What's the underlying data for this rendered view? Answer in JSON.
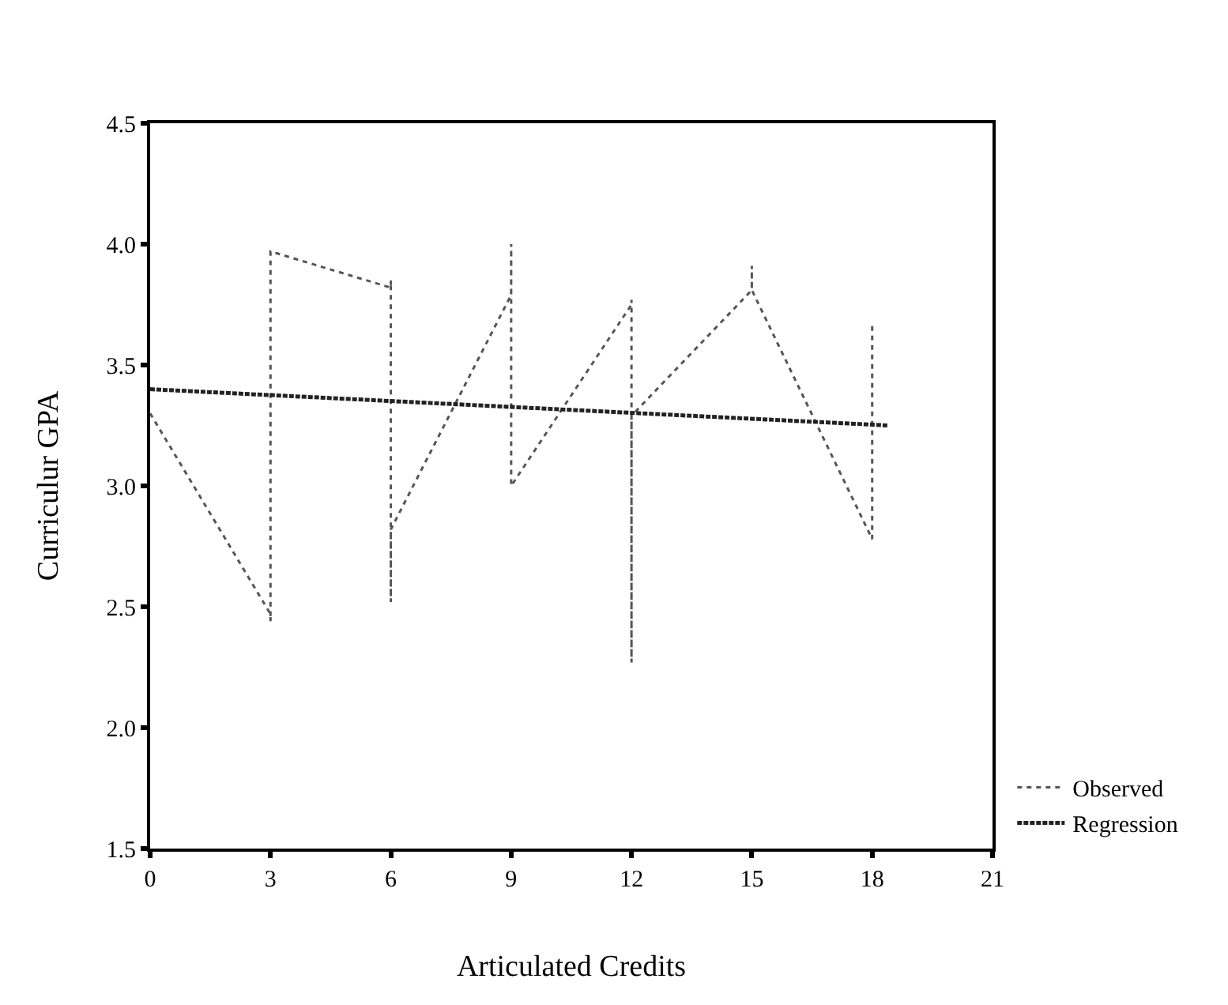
{
  "chart_data": {
    "type": "line",
    "xlabel": "Articulated Credits",
    "ylabel": "Curriculur GPA",
    "xlim": [
      0,
      21
    ],
    "xticks": [
      0,
      3,
      6,
      9,
      12,
      15,
      18,
      21
    ],
    "ylim": [
      1.5,
      4.5
    ],
    "yticks": [
      {
        "value": 1.5,
        "label": "1.5"
      },
      {
        "value": 2,
        "label": "2.0"
      },
      {
        "value": 2.5,
        "label": "2.5"
      },
      {
        "value": 3,
        "label": "3.0"
      },
      {
        "value": 3.5,
        "label": "3.5"
      },
      {
        "value": 4,
        "label": "4.0"
      },
      {
        "value": 4.5,
        "label": "4.5"
      }
    ],
    "grid": false,
    "legend": "bottom right",
    "series": [
      {
        "name": "Observed",
        "color": "#555555",
        "line_style": "dotted",
        "x": [
          0,
          3,
          3,
          3,
          6,
          6,
          6,
          6,
          9,
          9,
          9,
          12,
          12,
          12,
          12,
          15,
          15,
          15,
          18,
          18
        ],
        "values": [
          3.3,
          2.47,
          2.44,
          3.97,
          3.82,
          3.85,
          2.52,
          2.82,
          3.79,
          4.0,
          3.0,
          3.75,
          3.77,
          2.27,
          3.29,
          3.81,
          3.91,
          3.81,
          2.78,
          3.68
        ]
      },
      {
        "name": "Regression",
        "color": "#222222",
        "line_style": "dashed",
        "x": [
          0,
          18.4
        ],
        "values": [
          3.4,
          3.25
        ]
      }
    ]
  }
}
